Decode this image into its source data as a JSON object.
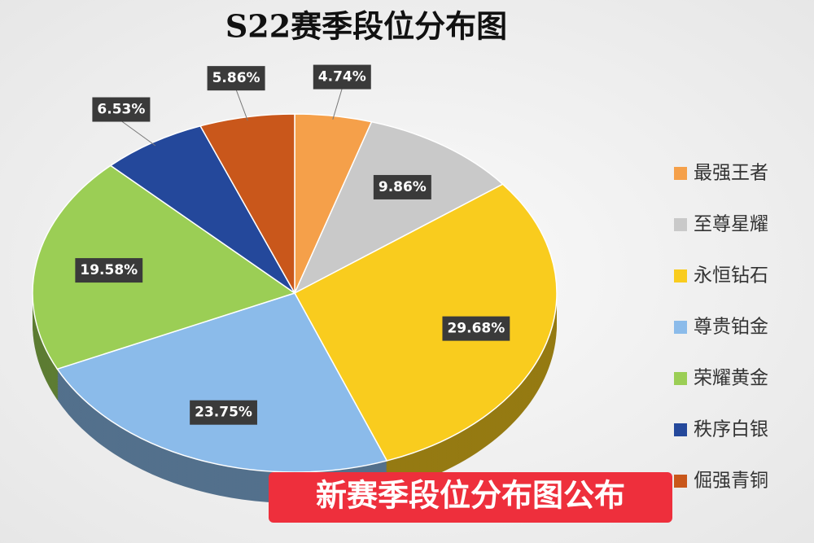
{
  "chart_data": {
    "type": "pie",
    "title": "S22赛季段位分布图",
    "categories": [
      "最强王者",
      "至尊星耀",
      "永恒钻石",
      "尊贵铂金",
      "荣耀黄金",
      "秩序白银",
      "倔强青铜"
    ],
    "values": [
      4.74,
      9.86,
      29.68,
      23.75,
      19.58,
      6.53,
      5.86
    ],
    "value_labels": [
      "4.74%",
      "9.86%",
      "29.68%",
      "23.75%",
      "19.58%",
      "6.53%",
      "5.86%"
    ],
    "colors": [
      "#f5a04a",
      "#c9c9c9",
      "#f9cc1e",
      "#8bbbea",
      "#9bce55",
      "#24489b",
      "#c9571b"
    ],
    "legend": "right",
    "annotation": "新赛季段位分布图公布"
  }
}
